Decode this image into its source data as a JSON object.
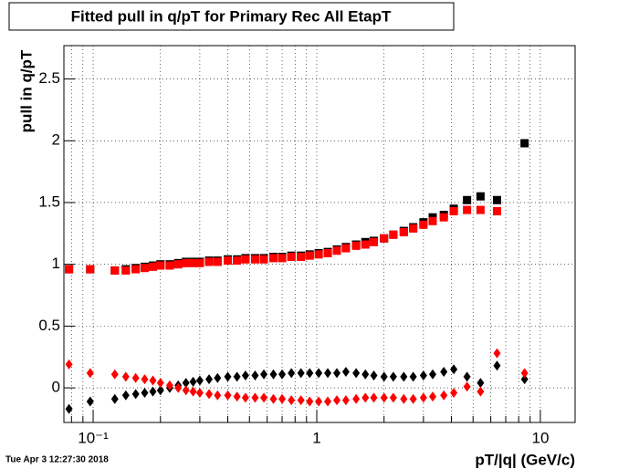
{
  "chart_data": {
    "type": "scatter",
    "title": "Fitted pull in q/pT for Primary Rec All EtapT",
    "y_label": "pull in q/pT",
    "x_label": "pT/|q| (GeV/c)",
    "timestamp": "Tue Apr  3 12:27:30 2018",
    "xscale": "log",
    "grid": true,
    "xlim": [
      0.074,
      14.3
    ],
    "ylim": [
      -0.28,
      2.77
    ],
    "xticks": [
      {
        "value": 0.1,
        "label": "10⁻¹"
      },
      1,
      10
    ],
    "xminorticks": [
      0.08,
      0.09,
      0.2,
      0.3,
      0.4,
      0.5,
      0.6,
      0.7,
      0.8,
      0.9,
      2,
      3,
      4,
      5,
      6,
      7,
      8,
      9
    ],
    "yticks": [
      0,
      0.5,
      1,
      1.5,
      2,
      2.5
    ],
    "x": [
      0.078,
      0.097,
      0.125,
      0.14,
      0.155,
      0.17,
      0.185,
      0.2,
      0.22,
      0.24,
      0.26,
      0.28,
      0.3,
      0.33,
      0.36,
      0.4,
      0.44,
      0.48,
      0.53,
      0.58,
      0.64,
      0.7,
      0.77,
      0.85,
      0.93,
      1.02,
      1.12,
      1.23,
      1.35,
      1.5,
      1.65,
      1.8,
      2.0,
      2.2,
      2.45,
      2.7,
      3.0,
      3.3,
      3.7,
      4.1,
      4.7,
      5.4,
      6.4,
      8.5
    ],
    "series": [
      {
        "color": "#000000",
        "marker": "square",
        "values": [
          0.96,
          0.96,
          0.95,
          0.96,
          0.97,
          0.98,
          0.99,
          1.0,
          1.0,
          1.01,
          1.02,
          1.02,
          1.02,
          1.03,
          1.03,
          1.04,
          1.04,
          1.05,
          1.05,
          1.05,
          1.06,
          1.06,
          1.07,
          1.07,
          1.08,
          1.09,
          1.1,
          1.12,
          1.14,
          1.16,
          1.18,
          1.19,
          1.21,
          1.24,
          1.27,
          1.3,
          1.34,
          1.38,
          1.4,
          1.45,
          1.52,
          1.55,
          1.52,
          1.98
        ]
      },
      {
        "color": "#ff0000",
        "marker": "square",
        "values": [
          0.96,
          0.96,
          0.95,
          0.95,
          0.96,
          0.97,
          0.98,
          0.99,
          0.99,
          1.0,
          1.01,
          1.01,
          1.01,
          1.02,
          1.02,
          1.03,
          1.03,
          1.04,
          1.04,
          1.04,
          1.05,
          1.05,
          1.06,
          1.06,
          1.07,
          1.08,
          1.09,
          1.11,
          1.13,
          1.15,
          1.16,
          1.18,
          1.21,
          1.24,
          1.26,
          1.29,
          1.32,
          1.35,
          1.38,
          1.43,
          1.44,
          1.44,
          1.43,
          null
        ]
      },
      {
        "color": "#000000",
        "marker": "diamond",
        "values": [
          -0.17,
          -0.11,
          -0.09,
          -0.06,
          -0.05,
          -0.04,
          -0.03,
          -0.02,
          0.0,
          0.02,
          0.04,
          0.05,
          0.06,
          0.07,
          0.08,
          0.09,
          0.09,
          0.1,
          0.1,
          0.11,
          0.11,
          0.11,
          0.12,
          0.12,
          0.12,
          0.12,
          0.12,
          0.12,
          0.13,
          0.12,
          0.11,
          0.1,
          0.09,
          0.09,
          0.09,
          0.09,
          0.1,
          0.11,
          0.13,
          0.15,
          0.09,
          0.04,
          0.18,
          0.07
        ]
      },
      {
        "color": "#ff0000",
        "marker": "diamond",
        "values": [
          0.19,
          0.12,
          0.11,
          0.09,
          0.08,
          0.07,
          0.06,
          0.04,
          0.02,
          0.0,
          -0.02,
          -0.03,
          -0.04,
          -0.05,
          -0.06,
          -0.06,
          -0.07,
          -0.08,
          -0.08,
          -0.08,
          -0.09,
          -0.09,
          -0.1,
          -0.1,
          -0.11,
          -0.11,
          -0.11,
          -0.1,
          -0.1,
          -0.09,
          -0.08,
          -0.08,
          -0.08,
          -0.08,
          -0.09,
          -0.09,
          -0.08,
          -0.07,
          -0.06,
          -0.04,
          0.01,
          -0.03,
          0.28,
          0.12
        ]
      }
    ]
  }
}
